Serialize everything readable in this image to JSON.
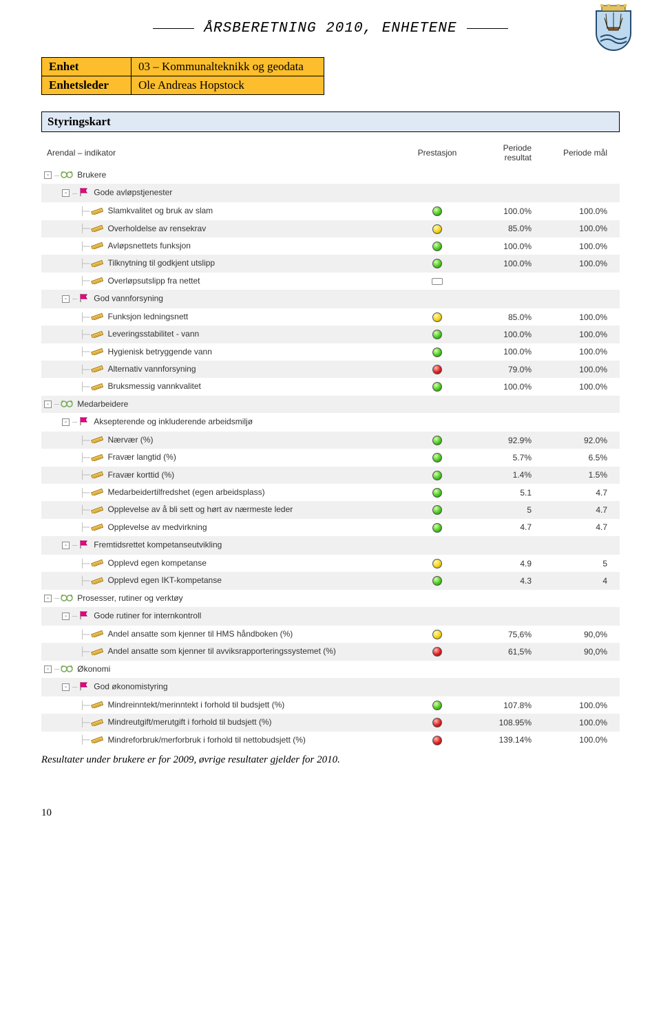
{
  "header": {
    "title": "ÅRSBERETNING 2010, ENHETENE"
  },
  "meta": {
    "row1_label": "Enhet",
    "row1_value": "03 – Kommunalteknikk og geodata",
    "row2_label": "Enhetsleder",
    "row2_value": "Ole Andreas Hopstock"
  },
  "section_title": "Styringskart",
  "colors": {
    "page_bg": "#ffffff",
    "highlight_bg": "#fcbe2c",
    "section_bg": "#dfe9f5",
    "row_alt_bg": "#f0f0f0",
    "led_green": "#4bcb1f",
    "led_yellow": "#f5d417",
    "led_red": "#e02020"
  },
  "scorecard": {
    "columns": {
      "indicator": "Arendal – indikator",
      "prestasjon": "Prestasjon",
      "resultat": "Periode resultat",
      "maal": "Periode mål"
    },
    "rows": [
      {
        "level": 0,
        "type": "perspective",
        "label": "Brukere",
        "exp": "-"
      },
      {
        "level": 1,
        "type": "goal",
        "label": "Gode avløpstjenester",
        "exp": "-",
        "alt": true
      },
      {
        "level": 2,
        "type": "kpi",
        "label": "Slamkvalitet og bruk av slam",
        "led": "green",
        "result": "100.0%",
        "goal": "100.0%"
      },
      {
        "level": 2,
        "type": "kpi",
        "label": "Overholdelse av rensekrav",
        "led": "yellow",
        "result": "85.0%",
        "goal": "100.0%",
        "alt": true
      },
      {
        "level": 2,
        "type": "kpi",
        "label": "Avløpsnettets funksjon",
        "led": "green",
        "result": "100.0%",
        "goal": "100.0%"
      },
      {
        "level": 2,
        "type": "kpi",
        "label": "Tilknytning til godkjent utslipp",
        "led": "green",
        "result": "100.0%",
        "goal": "100.0%",
        "alt": true
      },
      {
        "level": 2,
        "type": "kpi",
        "label": "Overløpsutslipp fra nettet",
        "led": "blank"
      },
      {
        "level": 1,
        "type": "goal",
        "label": "God vannforsyning",
        "exp": "-",
        "alt": true
      },
      {
        "level": 2,
        "type": "kpi",
        "label": "Funksjon ledningsnett",
        "led": "yellow",
        "result": "85.0%",
        "goal": "100.0%"
      },
      {
        "level": 2,
        "type": "kpi",
        "label": "Leveringsstabilitet - vann",
        "led": "green",
        "result": "100.0%",
        "goal": "100.0%",
        "alt": true
      },
      {
        "level": 2,
        "type": "kpi",
        "label": "Hygienisk betryggende vann",
        "led": "green",
        "result": "100.0%",
        "goal": "100.0%"
      },
      {
        "level": 2,
        "type": "kpi",
        "label": "Alternativ vannforsyning",
        "led": "red",
        "result": "79.0%",
        "goal": "100.0%",
        "alt": true
      },
      {
        "level": 2,
        "type": "kpi",
        "label": "Bruksmessig vannkvalitet",
        "led": "green",
        "result": "100.0%",
        "goal": "100.0%"
      },
      {
        "level": 0,
        "type": "perspective",
        "label": "Medarbeidere",
        "exp": "-",
        "alt": true
      },
      {
        "level": 1,
        "type": "goal",
        "label": "Aksepterende og inkluderende arbeidsmiljø",
        "exp": "-"
      },
      {
        "level": 2,
        "type": "kpi",
        "label": "Nærvær (%)",
        "led": "green",
        "result": "92.9%",
        "goal": "92.0%",
        "alt": true
      },
      {
        "level": 2,
        "type": "kpi",
        "label": "Fravær langtid (%)",
        "led": "green",
        "result": "5.7%",
        "goal": "6.5%"
      },
      {
        "level": 2,
        "type": "kpi",
        "label": "Fravær korttid (%)",
        "led": "green",
        "result": "1.4%",
        "goal": "1.5%",
        "alt": true
      },
      {
        "level": 2,
        "type": "kpi",
        "label": "Medarbeidertilfredshet (egen arbeidsplass)",
        "led": "green",
        "result": "5.1",
        "goal": "4.7"
      },
      {
        "level": 2,
        "type": "kpi",
        "label": "Opplevelse av å bli sett og hørt av nærmeste leder",
        "led": "green",
        "result": "5",
        "goal": "4.7",
        "alt": true
      },
      {
        "level": 2,
        "type": "kpi",
        "label": "Opplevelse av medvirkning",
        "led": "green",
        "result": "4.7",
        "goal": "4.7"
      },
      {
        "level": 1,
        "type": "goal",
        "label": "Fremtidsrettet kompetanseutvikling",
        "exp": "-",
        "alt": true
      },
      {
        "level": 2,
        "type": "kpi",
        "label": "Opplevd egen kompetanse",
        "led": "yellow",
        "result": "4.9",
        "goal": "5"
      },
      {
        "level": 2,
        "type": "kpi",
        "label": "Opplevd egen IKT-kompetanse",
        "led": "green",
        "result": "4.3",
        "goal": "4",
        "alt": true
      },
      {
        "level": 0,
        "type": "perspective",
        "label": "Prosesser, rutiner og verktøy",
        "exp": "-"
      },
      {
        "level": 1,
        "type": "goal",
        "label": "Gode rutiner for internkontroll",
        "exp": "-",
        "alt": true
      },
      {
        "level": 2,
        "type": "kpi",
        "label": "Andel ansatte som kjenner til HMS håndboken (%)",
        "led": "yellow",
        "result": "75,6%",
        "goal": "90,0%"
      },
      {
        "level": 2,
        "type": "kpi",
        "label": "Andel ansatte som kjenner til avviksrapporteringssystemet (%)",
        "led": "red",
        "result": "61,5%",
        "goal": "90,0%",
        "alt": true
      },
      {
        "level": 0,
        "type": "perspective",
        "label": "Økonomi",
        "exp": "-"
      },
      {
        "level": 1,
        "type": "goal",
        "label": "God økonomistyring",
        "exp": "-",
        "alt": true
      },
      {
        "level": 2,
        "type": "kpi",
        "label": "Mindreinntekt/merinntekt i forhold til budsjett (%)",
        "led": "green",
        "result": "107.8%",
        "goal": "100.0%"
      },
      {
        "level": 2,
        "type": "kpi",
        "label": "Mindreutgift/merutgift i forhold til budsjett (%)",
        "led": "red",
        "result": "108.95%",
        "goal": "100.0%",
        "alt": true
      },
      {
        "level": 2,
        "type": "kpi",
        "label": "Mindreforbruk/merforbruk i forhold til nettobudsjett (%)",
        "led": "red",
        "result": "139.14%",
        "goal": "100.0%"
      }
    ]
  },
  "caption": "Resultater under brukere er for 2009, øvrige resultater gjelder for 2010.",
  "pagenum": "10"
}
